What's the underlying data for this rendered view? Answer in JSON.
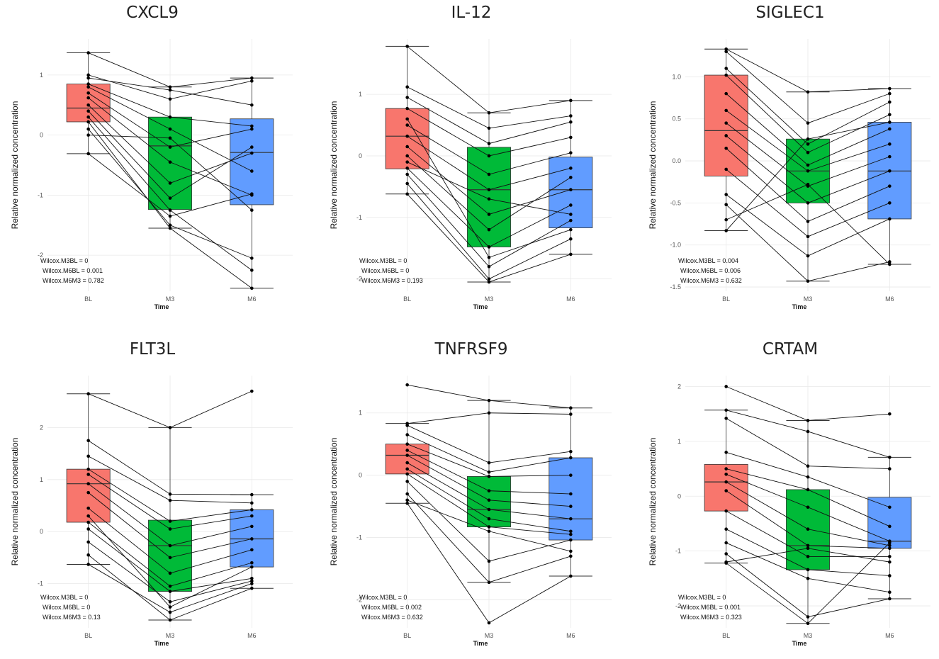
{
  "chart_data": [
    {
      "type": "box",
      "title": "CXCL9",
      "xlabel": "Time",
      "ylabel": "Relative normalized concentration",
      "categories": [
        "BL",
        "M3",
        "M6"
      ],
      "ylim": [
        -2.6,
        1.6
      ],
      "yticks": [
        1,
        0,
        -1,
        -2
      ],
      "colors": [
        "#F8766D",
        "#00BA38",
        "#619CFF"
      ],
      "boxes": [
        {
          "q1": 0.22,
          "median": 0.45,
          "q3": 0.85,
          "min": -0.31,
          "max": 1.37
        },
        {
          "q1": -1.24,
          "median": -0.18,
          "q3": 0.3,
          "min": -1.55,
          "max": 0.8
        },
        {
          "q1": -1.16,
          "median": -0.29,
          "q3": 0.27,
          "min": -2.55,
          "max": 0.95
        }
      ],
      "subjects": [
        [
          1.37,
          0.8,
          0.95
        ],
        [
          1.0,
          0.6,
          0.9
        ],
        [
          0.95,
          0.75,
          0.5
        ],
        [
          0.85,
          0.3,
          0.15
        ],
        [
          0.8,
          0.1,
          -0.6
        ],
        [
          0.7,
          -0.2,
          0.1
        ],
        [
          0.62,
          -0.45,
          -1.0
        ],
        [
          0.5,
          -0.8,
          -0.3
        ],
        [
          0.4,
          -1.05,
          -0.2
        ],
        [
          0.3,
          -1.25,
          -2.25
        ],
        [
          0.22,
          -1.55,
          -2.55
        ],
        [
          0.1,
          -1.5,
          -2.05
        ],
        [
          0.0,
          -0.05,
          -1.25
        ],
        [
          -0.31,
          -1.35,
          -0.98
        ]
      ],
      "stats": [
        "Wilcox.M3BL = 0",
        "Wilcox.M6BL = 0.001",
        "Wilcox.M6M3 = 0.782"
      ]
    },
    {
      "type": "box",
      "title": "IL-12",
      "xlabel": "Time",
      "ylabel": "Relative normalized concentration",
      "categories": [
        "BL",
        "M3",
        "M6"
      ],
      "ylim": [
        -2.2,
        1.9
      ],
      "yticks": [
        1,
        0,
        -1,
        -2
      ],
      "colors": [
        "#F8766D",
        "#00BA38",
        "#619CFF"
      ],
      "boxes": [
        {
          "q1": -0.21,
          "median": 0.32,
          "q3": 0.77,
          "min": -0.62,
          "max": 1.78
        },
        {
          "q1": -1.48,
          "median": -0.55,
          "q3": 0.14,
          "min": -2.05,
          "max": 0.7
        },
        {
          "q1": -1.17,
          "median": -0.55,
          "q3": -0.02,
          "min": -1.6,
          "max": 0.9
        }
      ],
      "subjects": [
        [
          1.78,
          0.7,
          0.9
        ],
        [
          1.12,
          0.45,
          0.65
        ],
        [
          0.95,
          0.2,
          0.55
        ],
        [
          0.77,
          0.0,
          0.3
        ],
        [
          0.5,
          -0.3,
          0.05
        ],
        [
          0.32,
          -0.55,
          -0.2
        ],
        [
          0.15,
          -0.95,
          -0.55
        ],
        [
          0.0,
          -1.2,
          -0.35
        ],
        [
          -0.2,
          -1.48,
          -0.8
        ],
        [
          -0.3,
          -1.8,
          -1.05
        ],
        [
          -0.45,
          -2.0,
          -1.35
        ],
        [
          -0.62,
          -2.05,
          -1.6
        ],
        [
          0.6,
          -1.65,
          -1.2
        ],
        [
          -0.1,
          -0.7,
          -0.95
        ]
      ],
      "stats": [
        "Wilcox.M3BL = 0",
        "Wilcox.M6BL = 0",
        "Wilcox.M6M3 = 0.193"
      ]
    },
    {
      "type": "box",
      "title": "SIGLEC1",
      "xlabel": "Time",
      "ylabel": "Relative normalized concentration",
      "categories": [
        "BL",
        "M3",
        "M6"
      ],
      "ylim": [
        -1.55,
        1.45
      ],
      "yticks": [
        1.0,
        0.5,
        0.0,
        -0.5,
        -1.0,
        -1.5
      ],
      "colors": [
        "#F8766D",
        "#00BA38",
        "#619CFF"
      ],
      "boxes": [
        {
          "q1": -0.18,
          "median": 0.36,
          "q3": 1.02,
          "min": -0.83,
          "max": 1.33
        },
        {
          "q1": -0.5,
          "median": -0.12,
          "q3": 0.26,
          "min": -1.43,
          "max": 0.82
        },
        {
          "q1": -0.69,
          "median": -0.12,
          "q3": 0.46,
          "min": -1.23,
          "max": 0.86
        }
      ],
      "subjects": [
        [
          1.33,
          0.82,
          0.86
        ],
        [
          1.3,
          0.45,
          0.8
        ],
        [
          1.1,
          0.2,
          0.7
        ],
        [
          1.02,
          0.1,
          0.55
        ],
        [
          0.8,
          -0.05,
          0.38
        ],
        [
          0.6,
          -0.12,
          0.2
        ],
        [
          0.45,
          -0.3,
          0.05
        ],
        [
          0.3,
          -0.5,
          -0.12
        ],
        [
          0.15,
          -0.72,
          -0.3
        ],
        [
          -0.1,
          -0.9,
          -0.5
        ],
        [
          -0.4,
          -1.13,
          -0.69
        ],
        [
          -0.52,
          -1.43,
          -1.2
        ],
        [
          -0.7,
          -0.28,
          -1.23
        ],
        [
          -0.83,
          0.26,
          0.46
        ]
      ],
      "stats": [
        "Wilcox.M3BL = 0.004",
        "Wilcox.M6BL = 0.006",
        "Wilcox.M6M3 = 0.632"
      ]
    },
    {
      "type": "box",
      "title": "FLT3L",
      "xlabel": "Time",
      "ylabel": "Relative normalized concentration",
      "categories": [
        "BL",
        "M3",
        "M6"
      ],
      "ylim": [
        -1.85,
        3.0
      ],
      "yticks": [
        2,
        1,
        0,
        -1
      ],
      "colors": [
        "#F8766D",
        "#00BA38",
        "#619CFF"
      ],
      "boxes": [
        {
          "q1": 0.18,
          "median": 0.92,
          "q3": 1.2,
          "min": -0.63,
          "max": 2.65
        },
        {
          "q1": -1.15,
          "median": -0.27,
          "q3": 0.22,
          "min": -1.7,
          "max": 2.0
        },
        {
          "q1": -0.68,
          "median": -0.14,
          "q3": 0.42,
          "min": -1.09,
          "max": 0.71
        }
      ],
      "subjects": [
        [
          2.65,
          2.0,
          2.7
        ],
        [
          1.75,
          0.72,
          0.71
        ],
        [
          1.45,
          0.6,
          0.55
        ],
        [
          1.2,
          0.2,
          0.42
        ],
        [
          1.1,
          0.05,
          0.3
        ],
        [
          0.92,
          -0.27,
          0.1
        ],
        [
          0.75,
          -0.5,
          -0.14
        ],
        [
          0.45,
          -0.8,
          -0.35
        ],
        [
          0.18,
          -1.05,
          -0.6
        ],
        [
          0.05,
          -1.15,
          -0.9
        ],
        [
          -0.2,
          -1.35,
          -0.95
        ],
        [
          -0.45,
          -1.7,
          -1.09
        ],
        [
          -0.63,
          -1.55,
          -1.0
        ],
        [
          0.3,
          -1.45,
          -0.68
        ]
      ],
      "stats": [
        "Wilcox.M3BL = 0",
        "Wilcox.M6BL = 0",
        "Wilcox.M6M3 = 0.13"
      ]
    },
    {
      "type": "box",
      "title": "TNFRSF9",
      "xlabel": "Time",
      "ylabel": "Relative normalized concentration",
      "categories": [
        "BL",
        "M3",
        "M6"
      ],
      "ylim": [
        -2.45,
        1.6
      ],
      "yticks": [
        1,
        0,
        -1,
        -2
      ],
      "colors": [
        "#F8766D",
        "#00BA38",
        "#619CFF"
      ],
      "boxes": [
        {
          "q1": 0.02,
          "median": 0.32,
          "q3": 0.5,
          "min": -0.45,
          "max": 0.83
        },
        {
          "q1": -0.83,
          "median": -0.55,
          "q3": -0.02,
          "min": -1.72,
          "max": 1.2
        },
        {
          "q1": -1.04,
          "median": -0.7,
          "q3": 0.28,
          "min": -1.62,
          "max": 1.08
        }
      ],
      "subjects": [
        [
          1.45,
          1.2,
          1.08
        ],
        [
          0.83,
          1.0,
          0.98
        ],
        [
          0.8,
          0.2,
          0.38
        ],
        [
          0.65,
          0.05,
          0.28
        ],
        [
          0.5,
          -0.02,
          0.0
        ],
        [
          0.4,
          -0.25,
          -0.3
        ],
        [
          0.32,
          -0.4,
          -0.5
        ],
        [
          0.2,
          -0.55,
          -0.7
        ],
        [
          0.1,
          -0.7,
          -0.9
        ],
        [
          0.02,
          -0.83,
          -0.95
        ],
        [
          -0.1,
          -1.38,
          -1.04
        ],
        [
          -0.3,
          -1.72,
          -1.3
        ],
        [
          -0.45,
          -2.37,
          -1.62
        ],
        [
          -0.4,
          -0.9,
          -1.22
        ]
      ],
      "stats": [
        "Wilcox.M3BL = 0",
        "Wilcox.M6BL = 0.002",
        "Wilcox.M6M3 = 0.632"
      ]
    },
    {
      "type": "box",
      "title": "CRTAM",
      "xlabel": "Time",
      "ylabel": "Relative normalized concentration",
      "categories": [
        "BL",
        "M3",
        "M6"
      ],
      "ylim": [
        -2.4,
        2.2
      ],
      "yticks": [
        2,
        1,
        0,
        -1,
        -2
      ],
      "colors": [
        "#F8766D",
        "#00BA38",
        "#619CFF"
      ],
      "boxes": [
        {
          "q1": -0.27,
          "median": 0.26,
          "q3": 0.58,
          "min": -1.22,
          "max": 1.57
        },
        {
          "q1": -1.34,
          "median": -0.9,
          "q3": 0.12,
          "min": -2.32,
          "max": 1.38
        },
        {
          "q1": -0.95,
          "median": -0.82,
          "q3": -0.02,
          "min": -1.87,
          "max": 0.71
        }
      ],
      "subjects": [
        [
          2.0,
          1.38,
          1.5
        ],
        [
          1.57,
          1.18,
          0.71
        ],
        [
          1.42,
          0.55,
          0.5
        ],
        [
          0.8,
          0.35,
          -0.2
        ],
        [
          0.5,
          0.12,
          -0.55
        ],
        [
          0.4,
          -0.2,
          -0.82
        ],
        [
          0.26,
          -0.6,
          -0.9
        ],
        [
          0.1,
          -0.9,
          -0.95
        ],
        [
          -0.27,
          -1.1,
          -1.1
        ],
        [
          -0.6,
          -1.34,
          -1.45
        ],
        [
          -0.85,
          -1.5,
          -1.75
        ],
        [
          -1.05,
          -2.2,
          -1.87
        ],
        [
          -1.22,
          -2.32,
          -0.85
        ],
        [
          -1.2,
          -0.95,
          -1.2
        ]
      ],
      "stats": [
        "Wilcox.M3BL = 0",
        "Wilcox.M6BL = 0.001",
        "Wilcox.M6M3 = 0.323"
      ]
    }
  ]
}
